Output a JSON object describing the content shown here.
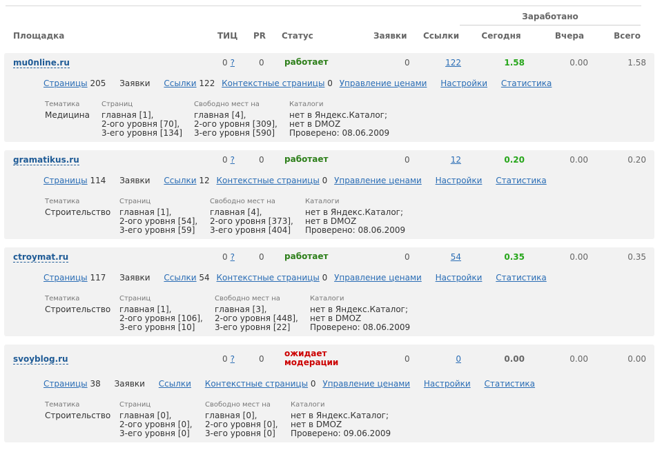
{
  "header": {
    "earned": "Заработано",
    "site": "Площадка",
    "tic": "ТИЦ",
    "pr": "PR",
    "status": "Статус",
    "requests": "Заявки",
    "links": "Ссылки",
    "today": "Сегодня",
    "yesterday": "Вчера",
    "total": "Всего"
  },
  "labels": {
    "pages": "Страницы",
    "requests": "Заявки",
    "links": "Ссылки",
    "context_pages": "Контекстные страницы",
    "price_management": "Управление ценами",
    "settings": "Настройки",
    "statistics": "Статистика",
    "q": "?",
    "theme": "Тематика",
    "pages_col": "Страниц",
    "free_places": "Свободно мест на",
    "catalogs": "Каталоги"
  },
  "sites": [
    {
      "name": "mu0nline.ru",
      "tic": "0",
      "pr": "0",
      "status": "работает",
      "requests": "0",
      "links": "122",
      "today": "1.58",
      "yesterday": "0.00",
      "total": "1.58",
      "pages_count": "205",
      "links_count": "122",
      "context_count": "0",
      "theme": "Медицина",
      "pages_lines": [
        "главная [1],",
        "2-ого уровня [70],",
        "3-его уровня [134]"
      ],
      "free_lines": [
        "главная [4],",
        "2-ого уровня [309],",
        "3-его уровня [590]"
      ],
      "catalog_lines": [
        "нет в Яндекс.Каталог;",
        "нет в DMOZ",
        "Проверено: 08.06.2009"
      ]
    },
    {
      "name": "gramatikus.ru",
      "tic": "0",
      "pr": "0",
      "status": "работает",
      "requests": "0",
      "links": "12",
      "today": "0.20",
      "yesterday": "0.00",
      "total": "0.20",
      "pages_count": "114",
      "links_count": "12",
      "context_count": "0",
      "theme": "Строительство",
      "pages_lines": [
        "главная [1],",
        "2-ого уровня [54],",
        "3-его уровня [59]"
      ],
      "free_lines": [
        "главная [4],",
        "2-ого уровня [373],",
        "3-его уровня [404]"
      ],
      "catalog_lines": [
        "нет в Яндекс.Каталог;",
        "нет в DMOZ",
        "Проверено: 08.06.2009"
      ]
    },
    {
      "name": "ctroymat.ru",
      "tic": "0",
      "pr": "0",
      "status": "работает",
      "requests": "0",
      "links": "54",
      "today": "0.35",
      "yesterday": "0.00",
      "total": "0.35",
      "pages_count": "117",
      "links_count": "54",
      "context_count": "0",
      "theme": "Строительство",
      "pages_lines": [
        "главная [1],",
        "2-ого уровня [106],",
        "3-его уровня [10]"
      ],
      "free_lines": [
        "главная [3],",
        "2-ого уровня [448],",
        "3-его уровня [22]"
      ],
      "catalog_lines": [
        "нет в Яндекс.Каталог;",
        "нет в DMOZ",
        "Проверено: 08.06.2009"
      ]
    },
    {
      "name": "svoyblog.ru",
      "tic": "0",
      "pr": "0",
      "status_line1": "ожидает",
      "status_line2": "модерации",
      "requests": "0",
      "links": "0",
      "today": "0.00",
      "yesterday": "0.00",
      "total": "0.00",
      "pages_count": "38",
      "context_count": "0",
      "theme": "Строительство",
      "pages_lines": [
        "главная [0],",
        "2-ого уровня [0],",
        "3-его уровня [0]"
      ],
      "free_lines": [
        "главная [0],",
        "2-ого уровня [0],",
        "3-его уровня [0]"
      ],
      "catalog_lines": [
        "нет в Яндекс.Каталог;",
        "нет в DMOZ",
        "Проверено: 09.06.2009"
      ]
    }
  ]
}
